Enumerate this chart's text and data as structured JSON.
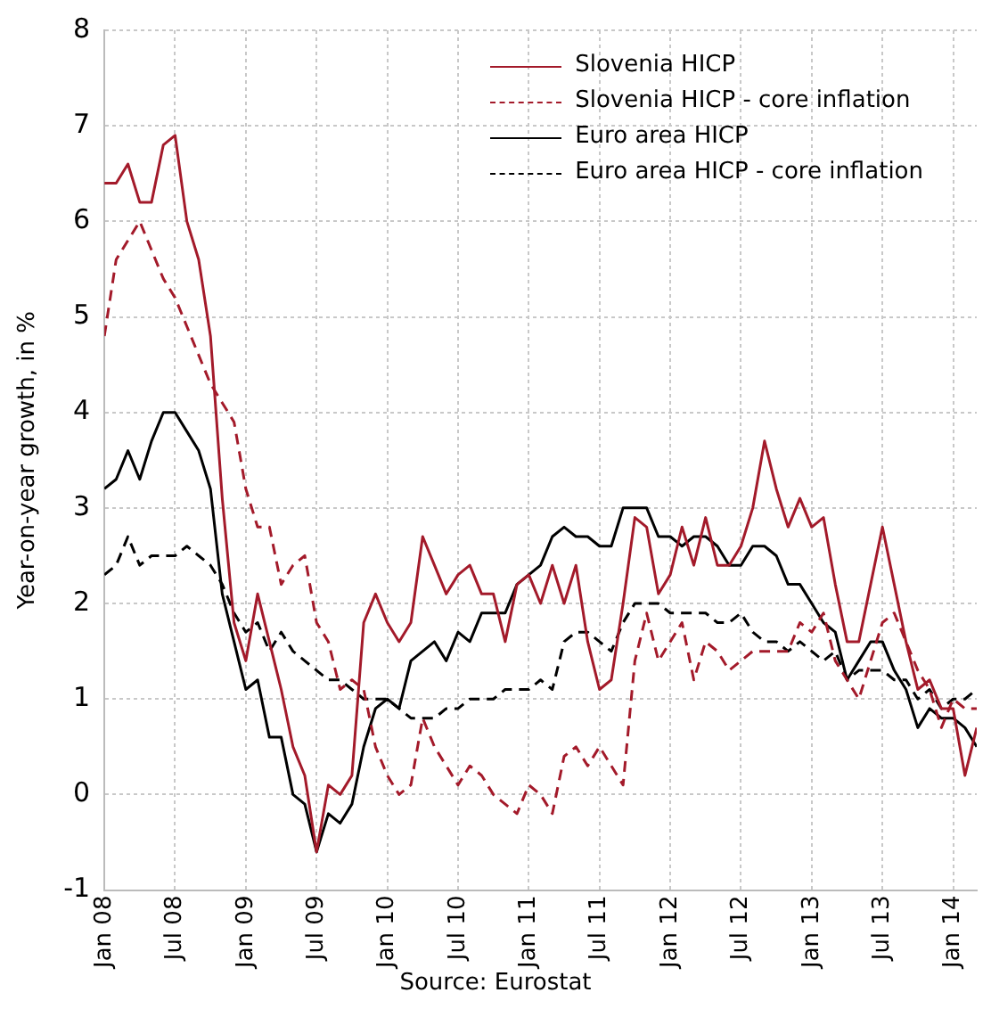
{
  "chart_data": {
    "type": "line",
    "ylabel": "Year-on-year growth, in %",
    "annotations": [
      "Source: Eurostat"
    ],
    "x": [
      "2008-01",
      "2008-02",
      "2008-03",
      "2008-04",
      "2008-05",
      "2008-06",
      "2008-07",
      "2008-08",
      "2008-09",
      "2008-10",
      "2008-11",
      "2008-12",
      "2009-01",
      "2009-02",
      "2009-03",
      "2009-04",
      "2009-05",
      "2009-06",
      "2009-07",
      "2009-08",
      "2009-09",
      "2009-10",
      "2009-11",
      "2009-12",
      "2010-01",
      "2010-02",
      "2010-03",
      "2010-04",
      "2010-05",
      "2010-06",
      "2010-07",
      "2010-08",
      "2010-09",
      "2010-10",
      "2010-11",
      "2010-12",
      "2011-01",
      "2011-02",
      "2011-03",
      "2011-04",
      "2011-05",
      "2011-06",
      "2011-07",
      "2011-08",
      "2011-09",
      "2011-10",
      "2011-11",
      "2011-12",
      "2012-01",
      "2012-02",
      "2012-03",
      "2012-04",
      "2012-05",
      "2012-06",
      "2012-07",
      "2012-08",
      "2012-09",
      "2012-10",
      "2012-11",
      "2012-12",
      "2013-01",
      "2013-02",
      "2013-03",
      "2013-04",
      "2013-05",
      "2013-06",
      "2013-07",
      "2013-08",
      "2013-09",
      "2013-10",
      "2013-11",
      "2013-12",
      "2014-01",
      "2014-02",
      "2014-03"
    ],
    "series": [
      {
        "name": "Slovenia HICP",
        "color": "#a31a2a",
        "line_style": "solid",
        "values": [
          6.4,
          6.4,
          6.6,
          6.2,
          6.2,
          6.8,
          6.9,
          6.0,
          5.6,
          4.8,
          3.1,
          1.8,
          1.4,
          2.1,
          1.6,
          1.1,
          0.5,
          0.2,
          -0.6,
          0.1,
          0.0,
          0.2,
          1.8,
          2.1,
          1.8,
          1.6,
          1.8,
          2.7,
          2.4,
          2.1,
          2.3,
          2.4,
          2.1,
          2.1,
          1.6,
          2.2,
          2.3,
          2.0,
          2.4,
          2.0,
          2.4,
          1.6,
          1.1,
          1.2,
          2.0,
          2.9,
          2.8,
          2.1,
          2.3,
          2.8,
          2.4,
          2.9,
          2.4,
          2.4,
          2.6,
          3.0,
          3.7,
          3.2,
          2.8,
          3.1,
          2.8,
          2.9,
          2.2,
          1.6,
          1.6,
          2.2,
          2.8,
          2.2,
          1.6,
          1.1,
          1.2,
          0.9,
          0.9,
          0.2,
          0.7
        ]
      },
      {
        "name": "Slovenia HICP - core inflation",
        "color": "#a31a2a",
        "line_style": "dashed",
        "values": [
          4.8,
          5.6,
          5.8,
          6.0,
          5.7,
          5.4,
          5.2,
          4.9,
          4.6,
          4.3,
          4.1,
          3.9,
          3.2,
          2.8,
          2.8,
          2.2,
          2.4,
          2.5,
          1.8,
          1.6,
          1.1,
          1.2,
          1.1,
          0.5,
          0.2,
          0.0,
          0.1,
          0.8,
          0.5,
          0.3,
          0.1,
          0.3,
          0.2,
          0.0,
          -0.1,
          -0.2,
          0.1,
          0.0,
          -0.2,
          0.4,
          0.5,
          0.3,
          0.5,
          0.3,
          0.1,
          1.4,
          1.9,
          1.4,
          1.6,
          1.8,
          1.2,
          1.6,
          1.5,
          1.3,
          1.4,
          1.5,
          1.5,
          1.5,
          1.5,
          1.8,
          1.7,
          1.9,
          1.4,
          1.2,
          1.0,
          1.4,
          1.8,
          1.9,
          1.6,
          1.3,
          1.1,
          0.7,
          1.0,
          0.9,
          0.9
        ]
      },
      {
        "name": "Euro area HICP",
        "color": "#000000",
        "line_style": "solid",
        "values": [
          3.2,
          3.3,
          3.6,
          3.3,
          3.7,
          4.0,
          4.0,
          3.8,
          3.6,
          3.2,
          2.1,
          1.6,
          1.1,
          1.2,
          0.6,
          0.6,
          0.0,
          -0.1,
          -0.6,
          -0.2,
          -0.3,
          -0.1,
          0.5,
          0.9,
          1.0,
          0.9,
          1.4,
          1.5,
          1.6,
          1.4,
          1.7,
          1.6,
          1.9,
          1.9,
          1.9,
          2.2,
          2.3,
          2.4,
          2.7,
          2.8,
          2.7,
          2.7,
          2.6,
          2.6,
          3.0,
          3.0,
          3.0,
          2.7,
          2.7,
          2.6,
          2.7,
          2.7,
          2.6,
          2.4,
          2.4,
          2.6,
          2.6,
          2.5,
          2.2,
          2.2,
          2.0,
          1.8,
          1.7,
          1.2,
          1.4,
          1.6,
          1.6,
          1.3,
          1.1,
          0.7,
          0.9,
          0.8,
          0.8,
          0.7,
          0.5
        ]
      },
      {
        "name": "Euro area HICP - core inflation",
        "color": "#000000",
        "line_style": "dashed",
        "values": [
          2.3,
          2.4,
          2.7,
          2.4,
          2.5,
          2.5,
          2.5,
          2.6,
          2.5,
          2.4,
          2.2,
          1.9,
          1.7,
          1.8,
          1.5,
          1.7,
          1.5,
          1.4,
          1.3,
          1.2,
          1.2,
          1.1,
          1.0,
          1.0,
          1.0,
          0.9,
          0.8,
          0.8,
          0.8,
          0.9,
          0.9,
          1.0,
          1.0,
          1.0,
          1.1,
          1.1,
          1.1,
          1.2,
          1.1,
          1.6,
          1.7,
          1.7,
          1.6,
          1.5,
          1.8,
          2.0,
          2.0,
          2.0,
          1.9,
          1.9,
          1.9,
          1.9,
          1.8,
          1.8,
          1.9,
          1.7,
          1.6,
          1.6,
          1.5,
          1.6,
          1.5,
          1.4,
          1.5,
          1.2,
          1.3,
          1.3,
          1.3,
          1.2,
          1.2,
          1.0,
          1.1,
          0.9,
          1.0,
          1.0,
          1.1
        ]
      }
    ],
    "xlim": [
      "2008-01",
      "2014-03"
    ],
    "xticks": [
      {
        "value": "2008-01",
        "label": "Jan 08"
      },
      {
        "value": "2008-07",
        "label": "Jul 08"
      },
      {
        "value": "2009-01",
        "label": "Jan 09"
      },
      {
        "value": "2009-07",
        "label": "Jul 09"
      },
      {
        "value": "2010-01",
        "label": "Jan 10"
      },
      {
        "value": "2010-07",
        "label": "Jul 10"
      },
      {
        "value": "2011-01",
        "label": "Jan 11"
      },
      {
        "value": "2011-07",
        "label": "Jul 11"
      },
      {
        "value": "2012-01",
        "label": "Jan 12"
      },
      {
        "value": "2012-07",
        "label": "Jul 12"
      },
      {
        "value": "2013-01",
        "label": "Jan 13"
      },
      {
        "value": "2013-07",
        "label": "Jul 13"
      },
      {
        "value": "2014-01",
        "label": "Jan 14"
      }
    ],
    "ylim": [
      -1,
      8
    ],
    "yticks": [
      -1,
      0,
      1,
      2,
      3,
      4,
      5,
      6,
      7,
      8
    ],
    "grid": true,
    "legend": "top right",
    "marker": "none"
  }
}
